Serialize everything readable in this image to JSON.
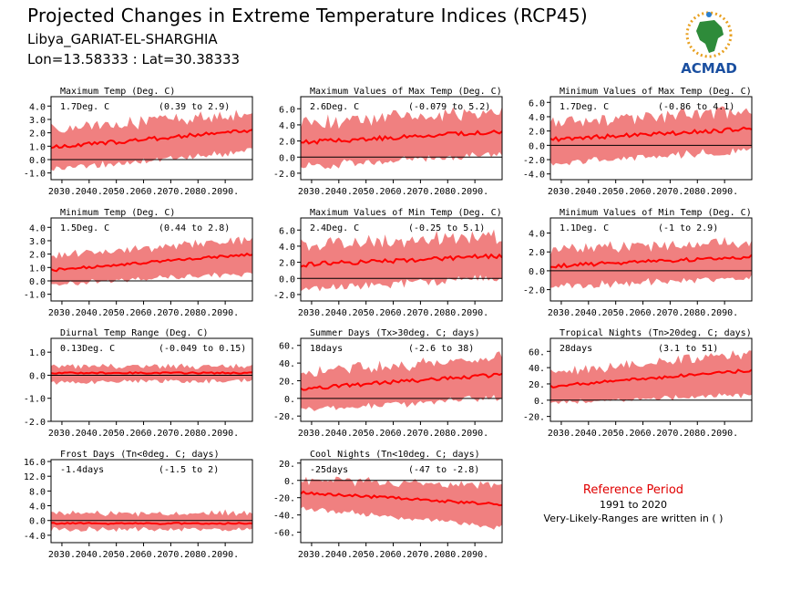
{
  "header": {
    "title": "Projected Changes in Extreme Temperature Indices (RCP45)",
    "location": "Libya_GARIAT-EL-SHARGHIA",
    "coords": "Lon=13.58333 : Lat=30.38333",
    "logo_text": "ACMAD"
  },
  "reference": {
    "title": "Reference Period",
    "years": "1991 to 2020",
    "note": "Very-Likely-Ranges are written in ( )"
  },
  "colors": {
    "band": "#f08080",
    "line": "#ff0000",
    "zero": "#000000",
    "ref_title": "#e00000"
  },
  "chart_data": [
    {
      "type": "area",
      "title": "Maximum Temp (Deg. C)",
      "summary": "1.7Deg. C",
      "range": "(0.39 to 2.9)",
      "x_ticks": [
        "2030.",
        "2040.",
        "2050.",
        "2060.",
        "2070.",
        "2080.",
        "2090."
      ],
      "y_ticks": [
        "4.0",
        "3.0",
        "2.0",
        "1.0",
        "0.0",
        "-1.0"
      ],
      "ylim": [
        -1.5,
        4.7
      ],
      "xlim": [
        2026,
        2100
      ],
      "median": {
        "start": 0.9,
        "end": 2.2
      },
      "band": {
        "low_start": -0.4,
        "low_end": 1.0,
        "high_start": 2.1,
        "high_end": 3.4
      }
    },
    {
      "type": "area",
      "title": "Maximum Values of Max Temp (Deg. C)",
      "summary": "2.6Deg. C",
      "range": "(-0.079 to 5.2)",
      "x_ticks": [
        "2030.",
        "2040.",
        "2050.",
        "2060.",
        "2070.",
        "2080.",
        "2090."
      ],
      "y_ticks": [
        "6.0",
        "4.0",
        "2.0",
        "0.0",
        "-2.0"
      ],
      "ylim": [
        -2.8,
        7.5
      ],
      "xlim": [
        2026,
        2100
      ],
      "median": {
        "start": 1.8,
        "end": 3.2
      },
      "band": {
        "low_start": -0.5,
        "low_end": 1.0,
        "high_start": 4.0,
        "high_end": 5.5
      }
    },
    {
      "type": "area",
      "title": "Minimum Values of Max Temp (Deg. C)",
      "summary": "1.7Deg. C",
      "range": "(-0.86 to 4.1)",
      "x_ticks": [
        "2030.",
        "2040.",
        "2050.",
        "2060.",
        "2070.",
        "2080.",
        "2090."
      ],
      "y_ticks": [
        "6.0",
        "4.0",
        "2.0",
        "0.0",
        "-2.0",
        "-4.0"
      ],
      "ylim": [
        -4.8,
        6.8
      ],
      "xlim": [
        2026,
        2100
      ],
      "median": {
        "start": 0.8,
        "end": 2.3
      },
      "band": {
        "low_start": -1.8,
        "low_end": 0.0,
        "high_start": 3.0,
        "high_end": 4.5
      }
    },
    {
      "type": "area",
      "title": "Minimum Temp (Deg. C)",
      "summary": "1.5Deg. C",
      "range": "(0.44 to 2.8)",
      "x_ticks": [
        "2030.",
        "2040.",
        "2050.",
        "2060.",
        "2070.",
        "2080.",
        "2090."
      ],
      "y_ticks": [
        "4.0",
        "3.0",
        "2.0",
        "1.0",
        "0.0",
        "-1.0"
      ],
      "ylim": [
        -1.5,
        4.7
      ],
      "xlim": [
        2026,
        2100
      ],
      "median": {
        "start": 0.8,
        "end": 2.0
      },
      "band": {
        "low_start": 0.0,
        "low_end": 0.9,
        "high_start": 1.7,
        "high_end": 3.0
      }
    },
    {
      "type": "area",
      "title": "Maximum Values of Min Temp (Deg. C)",
      "summary": "2.4Deg. C",
      "range": "(-0.25 to 5.1)",
      "x_ticks": [
        "2030.",
        "2040.",
        "2050.",
        "2060.",
        "2070.",
        "2080.",
        "2090."
      ],
      "y_ticks": [
        "6.0",
        "4.0",
        "2.0",
        "0.0",
        "-2.0"
      ],
      "ylim": [
        -2.8,
        7.5
      ],
      "xlim": [
        2026,
        2100
      ],
      "median": {
        "start": 1.7,
        "end": 2.8
      },
      "band": {
        "low_start": -0.7,
        "low_end": 0.8,
        "high_start": 4.0,
        "high_end": 5.0
      }
    },
    {
      "type": "area",
      "title": "Minimum Values of Min Temp (Deg. C)",
      "summary": "1.1Deg. C",
      "range": "(-1 to 2.9)",
      "x_ticks": [
        "2030.",
        "2040.",
        "2050.",
        "2060.",
        "2070.",
        "2080.",
        "2090."
      ],
      "y_ticks": [
        "4.0",
        "2.0",
        "0.0",
        "-2.0"
      ],
      "ylim": [
        -3.2,
        5.6
      ],
      "xlim": [
        2026,
        2100
      ],
      "median": {
        "start": 0.5,
        "end": 1.5
      },
      "band": {
        "low_start": -1.2,
        "low_end": -0.2,
        "high_start": 2.0,
        "high_end": 3.0
      }
    },
    {
      "type": "area",
      "title": "Diurnal Temp Range (Deg. C)",
      "summary": "0.13Deg. C",
      "range": "(-0.049 to 0.15)",
      "x_ticks": [
        "2030.",
        "2040.",
        "2050.",
        "2060.",
        "2070.",
        "2080.",
        "2090."
      ],
      "y_ticks": [
        "1.0",
        "0.0",
        "-1.0",
        "-2.0"
      ],
      "ylim": [
        -2.0,
        1.6
      ],
      "xlim": [
        2026,
        2100
      ],
      "median": {
        "start": 0.1,
        "end": 0.1
      },
      "band": {
        "low_start": -0.2,
        "low_end": -0.1,
        "high_start": 0.3,
        "high_end": 0.3
      }
    },
    {
      "type": "area",
      "title": "Summer Days (Tx>30deg. C; days)",
      "summary": "18days",
      "range": "(-2.6 to 38)",
      "x_ticks": [
        "2030.",
        "2040.",
        "2050.",
        "2060.",
        "2070.",
        "2080.",
        "2090."
      ],
      "y_ticks": [
        "60.",
        "40.",
        "20.",
        "0.",
        "-20."
      ],
      "ylim": [
        -26,
        68
      ],
      "xlim": [
        2026,
        2100
      ],
      "median": {
        "start": 11,
        "end": 27
      },
      "band": {
        "low_start": -8,
        "low_end": 6,
        "high_start": 27,
        "high_end": 45
      }
    },
    {
      "type": "area",
      "title": "Tropical Nights (Tn>20deg. C; days)",
      "summary": "28days",
      "range": "(3.1 to 51)",
      "x_ticks": [
        "2030.",
        "2040.",
        "2050.",
        "2060.",
        "2070.",
        "2080.",
        "2090."
      ],
      "y_ticks": [
        "60.",
        "40.",
        "20.",
        "0.",
        "-20."
      ],
      "ylim": [
        -26,
        76
      ],
      "xlim": [
        2026,
        2100
      ],
      "median": {
        "start": 17,
        "end": 37
      },
      "band": {
        "low_start": 2,
        "low_end": 12,
        "high_start": 32,
        "high_end": 55
      }
    },
    {
      "type": "area",
      "title": "Frost Days (Tn<0deg. C; days)",
      "summary": "-1.4days",
      "range": "(-1.5 to 2)",
      "x_ticks": [
        "2030.",
        "2040.",
        "2050.",
        "2060.",
        "2070.",
        "2080.",
        "2090."
      ],
      "y_ticks": [
        "16.0",
        "12.0",
        "8.0",
        "4.0",
        "0.0",
        "-4.0"
      ],
      "ylim": [
        -6,
        16.5
      ],
      "xlim": [
        2026,
        2100
      ],
      "median": {
        "start": -0.8,
        "end": -0.8
      },
      "band": {
        "low_start": -1.6,
        "low_end": -1.6,
        "high_start": 1.5,
        "high_end": 1.5
      }
    },
    {
      "type": "area",
      "title": "Cool Nights (Tn<10deg. C; days)",
      "summary": "-25days",
      "range": "(-47 to -2.8)",
      "x_ticks": [
        "2030.",
        "2040.",
        "2050.",
        "2060.",
        "2070.",
        "2080.",
        "2090."
      ],
      "y_ticks": [
        "20.",
        "0.",
        "-20.",
        "-40.",
        "-60."
      ],
      "ylim": [
        -72,
        24
      ],
      "xlim": [
        2026,
        2100
      ],
      "median": {
        "start": -14,
        "end": -28
      },
      "band": {
        "low_start": -28,
        "low_end": -50,
        "high_start": -2,
        "high_end": -8
      }
    }
  ]
}
